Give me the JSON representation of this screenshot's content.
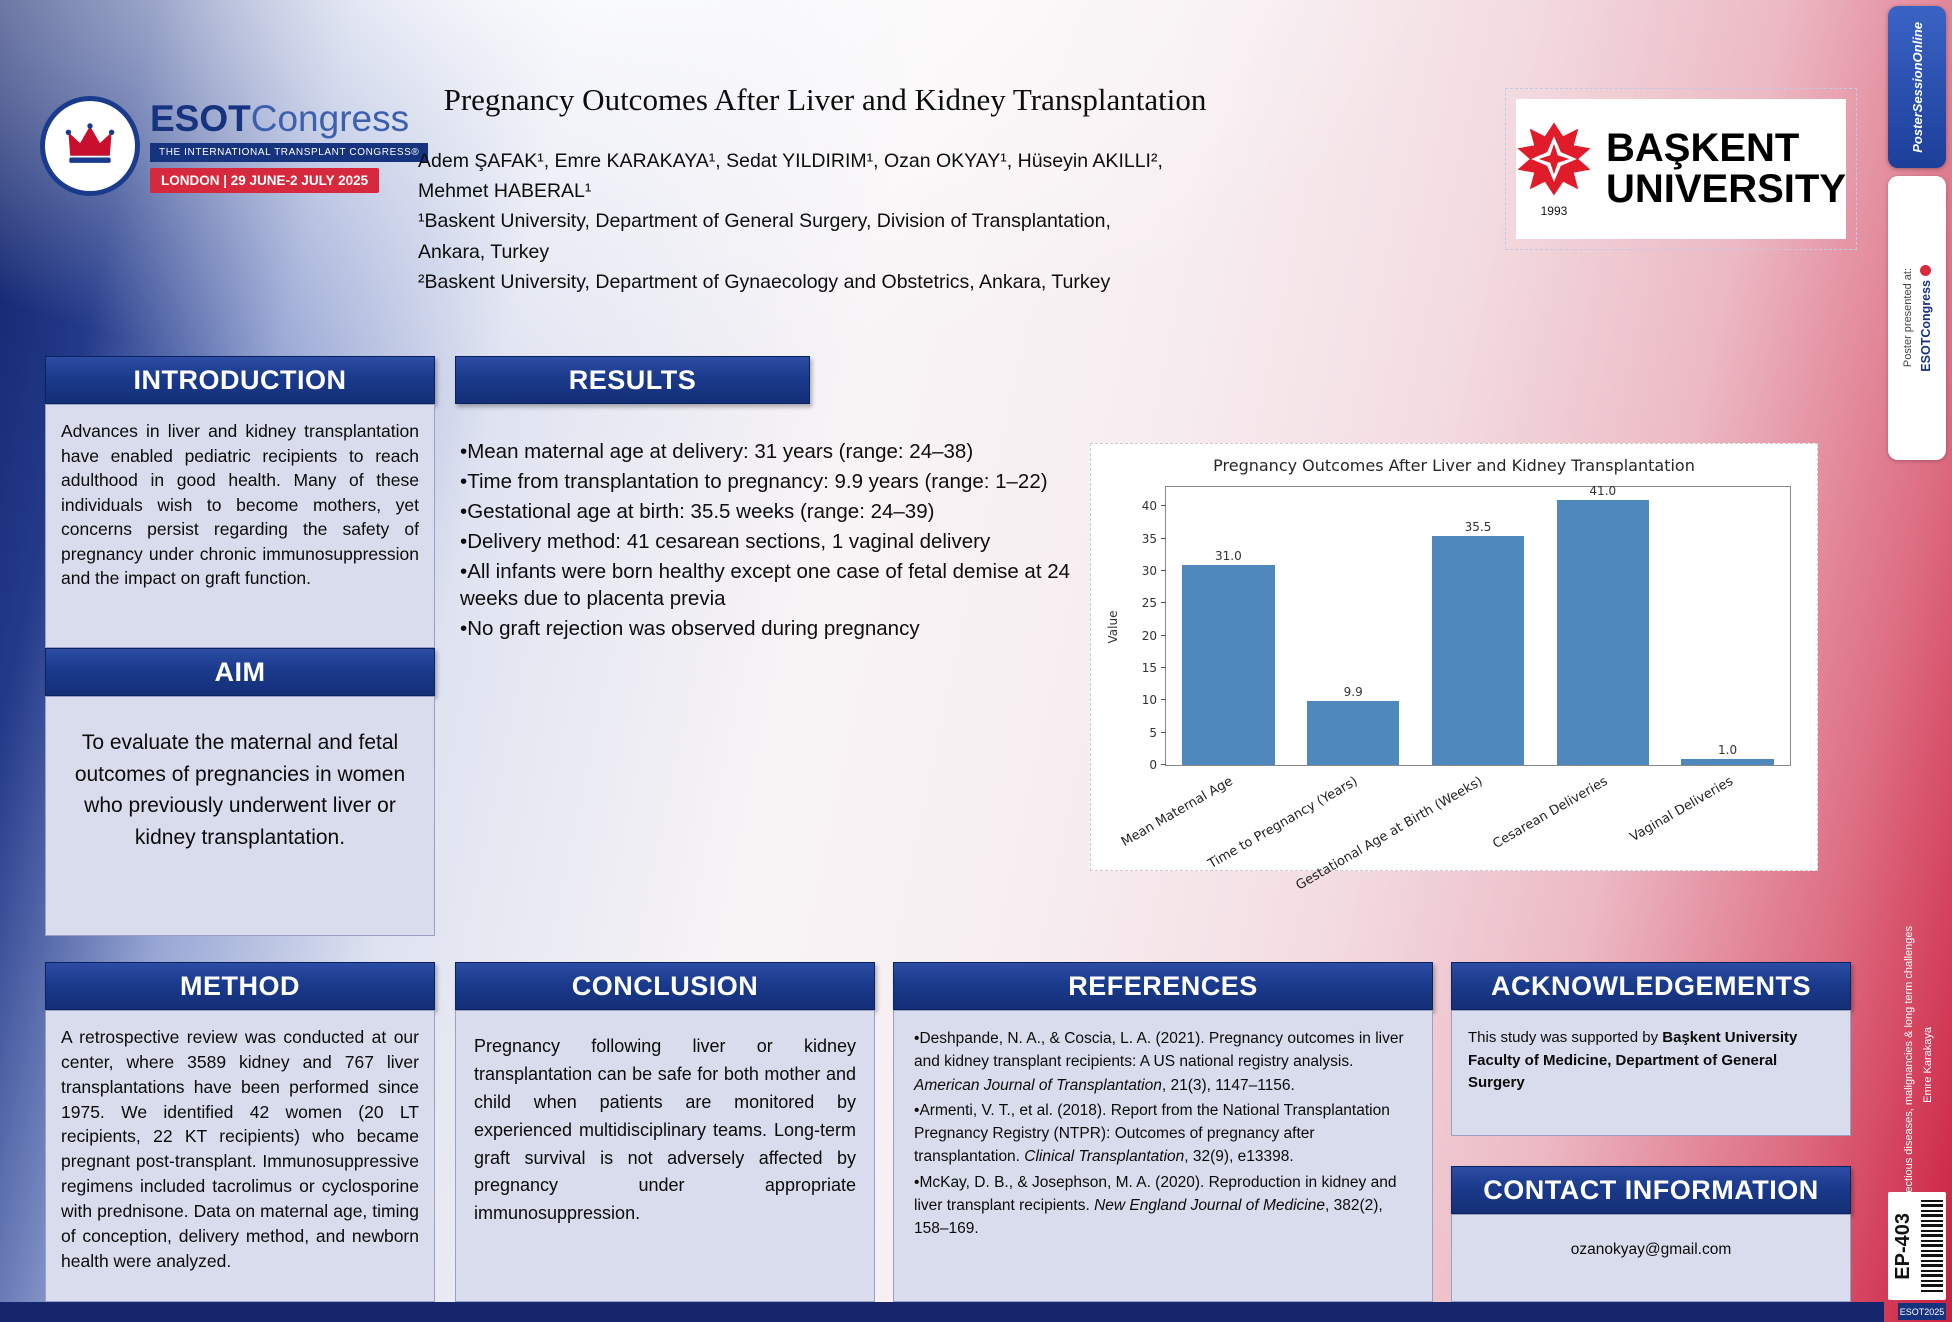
{
  "poster": {
    "esot_logo": {
      "esot": "ESOT",
      "congress": "Congress",
      "tagline": "THE INTERNATIONAL TRANSPLANT CONGRESS®",
      "banner": "LONDON | 29 JUNE-2 JULY 2025"
    },
    "title": "Pregnancy Outcomes After Liver and Kidney Transplantation",
    "author_lines": [
      "Adem ŞAFAK¹, Emre KARAKAYA¹, Sedat YILDIRIM¹, Ozan OKYAY¹, Hüseyin AKILLI²,",
      "Mehmet HABERAL¹"
    ],
    "affiliation_lines": [
      "¹Baskent University, Department of General Surgery, Division of Transplantation,",
      "Ankara, Turkey",
      "²Baskent University, Department of Gynaecology and Obstetrics, Ankara, Turkey"
    ],
    "baskent": {
      "line1": "BAŞKENT",
      "line2": "UNIVERSITY",
      "year": "1993"
    }
  },
  "sections": {
    "introduction": {
      "title": "INTRODUCTION",
      "body": "Advances in liver and kidney transplantation have enabled pediatric recipients to reach adulthood in good health. Many of these individuals wish to become mothers, yet concerns persist regarding the safety of pregnancy under chronic immunosuppression and the impact on graft function."
    },
    "aim": {
      "title": "AIM",
      "body": "To evaluate the maternal and fetal outcomes of pregnancies in women who previously underwent liver or kidney transplantation."
    },
    "results": {
      "title": "RESULTS",
      "bullets": [
        "Mean maternal age at delivery: 31 years (range: 24–38)",
        "Time from transplantation to pregnancy: 9.9 years (range: 1–22)",
        "Gestational age at birth: 35.5 weeks (range: 24–39)",
        "Delivery method: 41 cesarean sections, 1 vaginal delivery",
        "All infants were born healthy except one case of fetal demise at 24 weeks due to placenta previa",
        "No graft rejection was observed during pregnancy"
      ]
    },
    "method": {
      "title": "METHOD",
      "body": "A retrospective review was conducted at our center, where 3589 kidney and 767 liver transplantations have been performed since 1975. We identified 42 women (20 LT recipients, 22 KT recipients) who became pregnant post-transplant. Immunosuppressive regimens included tacrolimus or cyclosporine with prednisone. Data on maternal age, timing of conception, delivery method, and newborn health were analyzed."
    },
    "conclusion": {
      "title": "CONCLUSION",
      "body": "Pregnancy following liver or kidney transplantation can be safe for both mother and child when patients are monitored by experienced multidisciplinary teams. Long-term graft survival is not adversely affected by pregnancy under appropriate immunosuppression."
    },
    "references": {
      "title": "REFERENCES",
      "items": [
        {
          "pre": "Deshpande, N. A., & Coscia, L. A. (2021). Pregnancy outcomes in liver and kidney transplant recipients: A US national registry analysis. ",
          "italic": "American Journal of Transplantation",
          "post": ", 21(3), 1147–1156."
        },
        {
          "pre": "Armenti, V. T., et al. (2018). Report from the National Transplantation Pregnancy Registry (NTPR): Outcomes of pregnancy after transplantation. ",
          "italic": "Clinical Transplantation",
          "post": ", 32(9), e13398."
        },
        {
          "pre": "McKay, D. B., & Josephson, M. A. (2020). Reproduction in kidney and liver transplant recipients. ",
          "italic": "New England Journal of Medicine",
          "post": ", 382(2), 158–169."
        }
      ]
    },
    "acknowledgements": {
      "title": "ACKNOWLEDGEMENTS",
      "text": "This study was supported by ",
      "bold": "Başkent University Faculty of Medicine, Department of General Surgery"
    },
    "contact": {
      "title": "CONTACT INFORMATION",
      "email": "ozanokyay@gmail.com"
    }
  },
  "chart_data": {
    "type": "bar",
    "title": "Pregnancy Outcomes After Liver and Kidney Transplantation",
    "categories": [
      "Mean Maternal Age",
      "Time to Pregnancy (Years)",
      "Gestational Age at Birth (Weeks)",
      "Cesarean Deliveries",
      "Vaginal Deliveries"
    ],
    "values": [
      31.0,
      9.9,
      35.5,
      41.0,
      1.0
    ],
    "value_labels": [
      "31.0",
      "9.9",
      "35.5",
      "41.0",
      "1.0"
    ],
    "xlabel": "",
    "ylabel": "Value",
    "ylim": [
      0,
      43
    ],
    "yticks": [
      0,
      5,
      10,
      15,
      20,
      25,
      30,
      35,
      40
    ],
    "bar_color": "#4e88bd",
    "grid": false,
    "legend": null
  },
  "sidebar": {
    "poster_session_online": "PosterSessionOnline",
    "presented_label": "Poster presented at:",
    "esot_mini": "ESOTCongress",
    "track": "Infectious diseases, malignancies & long term challenges",
    "presenter": "Emre Karakaya",
    "poster_id": "EP-403",
    "footer": "ESOT2025"
  },
  "icons": {
    "crown-icon": "ESOT crown emblem (SVG)",
    "star-emblem-icon": "Başkent eight-point star with cross (SVG)",
    "mini-crown-icon": "small red ESOT roundel",
    "barcode": "vertical barcode stripes"
  },
  "colors": {
    "header_blue": "#1a3a8c",
    "poster_red": "#cc1f3f",
    "panel_lavender": "#d9dcec",
    "bar_blue": "#4e88bd"
  }
}
